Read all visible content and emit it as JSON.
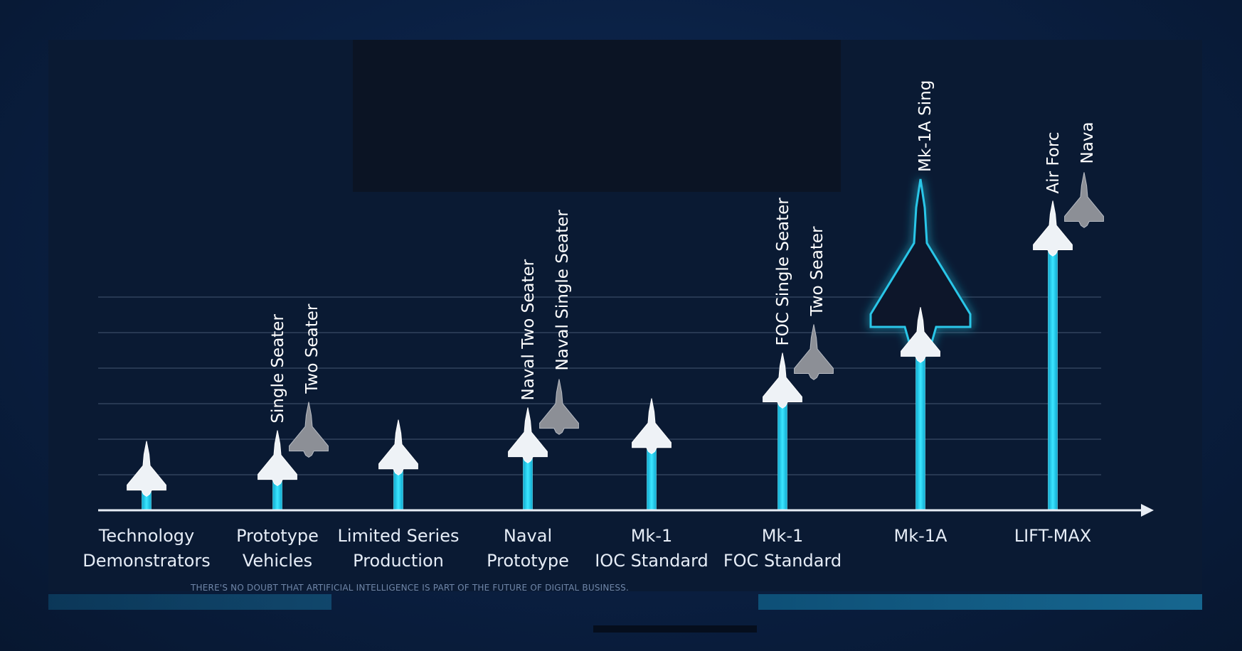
{
  "chart_data": {
    "type": "bar",
    "title": "",
    "xlabel": "",
    "ylabel": "",
    "grid": true,
    "ylim": [
      0,
      10
    ],
    "categories": [
      {
        "line1": "Technology",
        "line2": "Demonstrators"
      },
      {
        "line1": "Prototype",
        "line2": "Vehicles"
      },
      {
        "line1": "Limited Series",
        "line2": "Production"
      },
      {
        "line1": "Naval",
        "line2": "Prototype"
      },
      {
        "line1": "Mk-1",
        "line2": "IOC Standard"
      },
      {
        "line1": "Mk-1",
        "line2": "FOC Standard"
      },
      {
        "line1": "Mk-1A",
        "line2": ""
      },
      {
        "line1": "LIFT-MAX",
        "line2": ""
      }
    ],
    "values": [
      0.6,
      0.95,
      1.3,
      1.7,
      2.0,
      3.5,
      5.0,
      8.5
    ],
    "highlight_index": 6,
    "variants": [
      [],
      [
        {
          "label": "Single Seater",
          "shade": "white"
        },
        {
          "label": "Two Seater",
          "shade": "grey"
        }
      ],
      [],
      [
        {
          "label": "Naval Two Seater",
          "shade": "white"
        },
        {
          "label": "Naval Single Seater",
          "shade": "grey"
        }
      ],
      [],
      [
        {
          "label": "FOC Single Seater",
          "shade": "white"
        },
        {
          "label": "Two Seater",
          "shade": "grey"
        }
      ],
      [
        {
          "label": "Mk-1A Sing",
          "shade": "white"
        }
      ],
      [
        {
          "label": "Air Forc",
          "shade": "white"
        },
        {
          "label": "Nava",
          "shade": "grey"
        }
      ]
    ]
  },
  "footer_caption": "THERE'S NO DOUBT THAT ARTIFICIAL INTELLIGENCE IS PART OF THE FUTURE OF DIGITAL BUSINESS.",
  "colors": {
    "bar": "#1ec8e6",
    "bar_edge": "#6ff0ff",
    "plane_white": "#eef2f6",
    "plane_grey": "#8c8f96",
    "axis": "#e8edf5",
    "grid": "#6b7d9a",
    "glow": "#29c6e8",
    "silhouette": "#07152b"
  }
}
